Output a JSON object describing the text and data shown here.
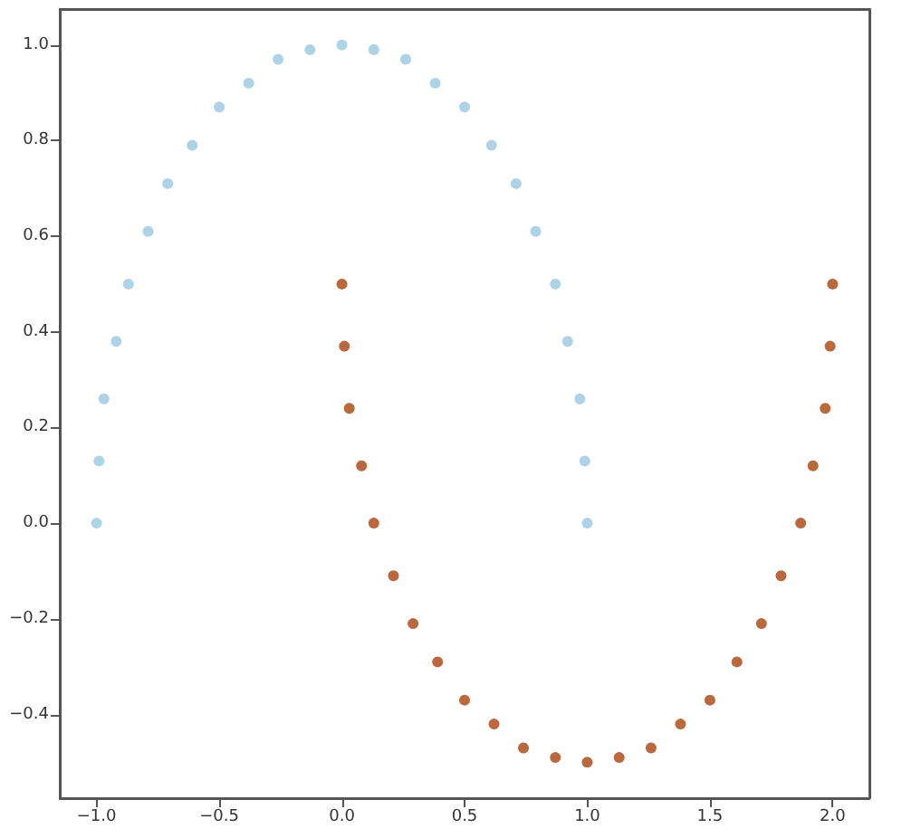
{
  "chart_data": {
    "type": "scatter",
    "marker": "circle",
    "grid": false,
    "xlim": [
      -1.15,
      2.15
    ],
    "xticks": [
      {
        "value": -1,
        "label": "−1.0"
      },
      {
        "value": -0.5,
        "label": "−0.5"
      },
      {
        "value": 0,
        "label": "0.0"
      },
      {
        "value": 0.5,
        "label": "0.5"
      },
      {
        "value": 1,
        "label": "1.0"
      },
      {
        "value": 1.5,
        "label": "1.5"
      },
      {
        "value": 2,
        "label": "2.0"
      }
    ],
    "ylim": [
      -0.575,
      1.075
    ],
    "yticks": [
      {
        "value": -0.4,
        "label": "−0.4"
      },
      {
        "value": -0.2,
        "label": "−0.2"
      },
      {
        "value": 0,
        "label": "0.0"
      },
      {
        "value": 0.2,
        "label": "0.2"
      },
      {
        "value": 0.4,
        "label": "0.4"
      },
      {
        "value": 0.6,
        "label": "0.6"
      },
      {
        "value": 0.8,
        "label": "0.8"
      },
      {
        "value": 1,
        "label": "1.0"
      }
    ],
    "series": [
      {
        "color": "#a6cee3",
        "x": [
          1,
          0.99,
          0.97,
          0.92,
          0.87,
          0.79,
          0.71,
          0.61,
          0.5,
          0.38,
          0.26,
          0.13,
          0,
          -0.13,
          -0.26,
          -0.38,
          -0.5,
          -0.61,
          -0.71,
          -0.79,
          -0.87,
          -0.92,
          -0.97,
          -0.99,
          -1
        ],
        "values": [
          0,
          0.13,
          0.26,
          0.38,
          0.5,
          0.61,
          0.71,
          0.79,
          0.87,
          0.92,
          0.97,
          0.99,
          1,
          0.99,
          0.97,
          0.92,
          0.87,
          0.79,
          0.71,
          0.61,
          0.5,
          0.38,
          0.26,
          0.13,
          0
        ]
      },
      {
        "color": "#b15928",
        "x": [
          0,
          0.01,
          0.03,
          0.08,
          0.13,
          0.21,
          0.29,
          0.39,
          0.5,
          0.62,
          0.74,
          0.87,
          1,
          1.13,
          1.26,
          1.38,
          1.5,
          1.61,
          1.71,
          1.79,
          1.87,
          1.92,
          1.97,
          1.99,
          2
        ],
        "values": [
          0.5,
          0.37,
          0.24,
          0.12,
          0,
          -0.11,
          -0.21,
          -0.29,
          -0.37,
          -0.42,
          -0.47,
          -0.49,
          -0.5,
          -0.49,
          -0.47,
          -0.42,
          -0.37,
          -0.29,
          -0.21,
          -0.11,
          0,
          0.12,
          0.24,
          0.37,
          0.5
        ]
      }
    ]
  }
}
